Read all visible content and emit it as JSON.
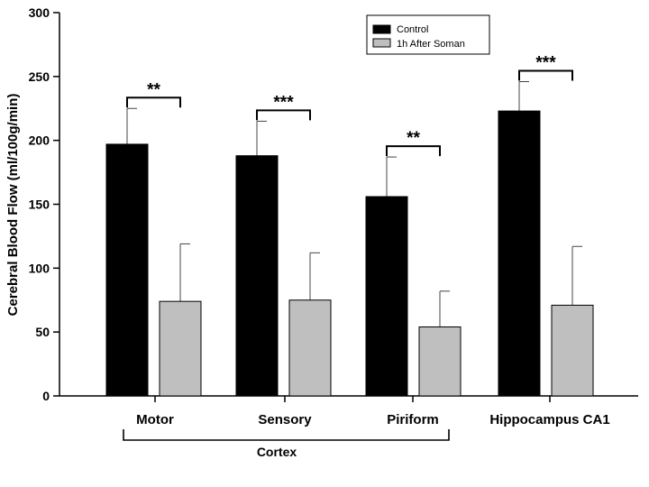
{
  "chart_data": {
    "type": "bar",
    "title": "",
    "xlabel": "",
    "ylabel": "Cerebral Blood Flow (ml/100g/min)",
    "ylim": [
      0,
      300
    ],
    "yticks": [
      0,
      50,
      100,
      150,
      200,
      250,
      300
    ],
    "categories": [
      "Motor",
      "Sensory",
      "Piriform",
      "Hippocampus CA1"
    ],
    "series": [
      {
        "name": "Control",
        "color": "#000000",
        "values": [
          197,
          188,
          156,
          223
        ],
        "errors": [
          28,
          27,
          31,
          23
        ]
      },
      {
        "name": "1h After Soman",
        "color": "#bfbfbf",
        "values": [
          74,
          75,
          54,
          71
        ],
        "errors": [
          45,
          37,
          28,
          46
        ]
      }
    ],
    "significance": [
      "**",
      "***",
      "**",
      "***"
    ],
    "group_bracket": {
      "label": "Cortex",
      "categories": [
        "Motor",
        "Sensory",
        "Piriform"
      ]
    },
    "legend_position": "top-right",
    "grid": false
  }
}
